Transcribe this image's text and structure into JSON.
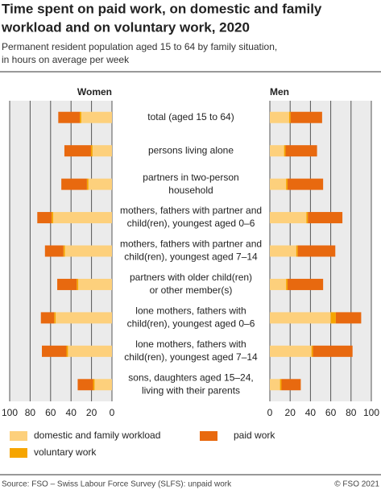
{
  "chart_data": {
    "type": "bar",
    "orientation": "horizontal",
    "stacked": true,
    "title": [
      "Time spent on paid work, on domestic and family",
      "workload and on voluntary work, 2020"
    ],
    "subtitle": [
      "Permanent resident population aged 15 to 64 by family situation,",
      "in hours on average per week"
    ],
    "categories": [
      [
        "total (aged 15 to 64)"
      ],
      [
        "persons living alone"
      ],
      [
        "partners in two-person",
        "household"
      ],
      [
        "mothers, fathers with partner and",
        "child(ren), youngest aged 0–6"
      ],
      [
        "mothers, fathers with partner and",
        "child(ren), youngest aged 7–14"
      ],
      [
        "partners with older child(ren)",
        "or other member(s)"
      ],
      [
        "lone mothers, fathers with",
        "child(ren), youngest aged 0–6"
      ],
      [
        "lone mothers, fathers with",
        "child(ren), youngest aged 7–14"
      ],
      [
        "sons, daughters aged 15–24,",
        "living with their parents"
      ]
    ],
    "series": [
      {
        "name": "domestic and family workload",
        "color": "#fdd07c"
      },
      {
        "name": "paid work",
        "color": "#e8690f"
      },
      {
        "name": "voluntary work",
        "color": "#f6a500"
      }
    ],
    "grid": true,
    "panels": [
      {
        "title": "Women",
        "xlim": [
          100,
          0
        ],
        "xticks": [
          100,
          80,
          60,
          40,
          20,
          0
        ],
        "values": [
          [
            30,
            19,
            23,
            57.5,
            46,
            33,
            55,
            43,
            17
          ],
          [
            21,
            26,
            25,
            14,
            18,
            19,
            13,
            24,
            15
          ],
          [
            1.5,
            1.5,
            1.5,
            1.5,
            1.5,
            1.5,
            1.5,
            1.5,
            1.5
          ]
        ]
      },
      {
        "title": "Men",
        "xlim": [
          0,
          100
        ],
        "xticks": [
          0,
          20,
          40,
          60,
          80,
          100
        ],
        "values": [
          [
            19,
            14,
            16,
            36,
            26,
            16,
            60,
            41,
            10
          ],
          [
            31,
            31,
            35,
            34,
            37,
            35,
            25,
            39,
            19
          ],
          [
            1.5,
            1.5,
            1.5,
            1.5,
            1.5,
            1.5,
            5,
            1.5,
            1.5
          ]
        ]
      }
    ],
    "source": "Source: FSO – Swiss Labour Force Survey (SLFS): unpaid work",
    "copyright": "© FSO 2021"
  }
}
